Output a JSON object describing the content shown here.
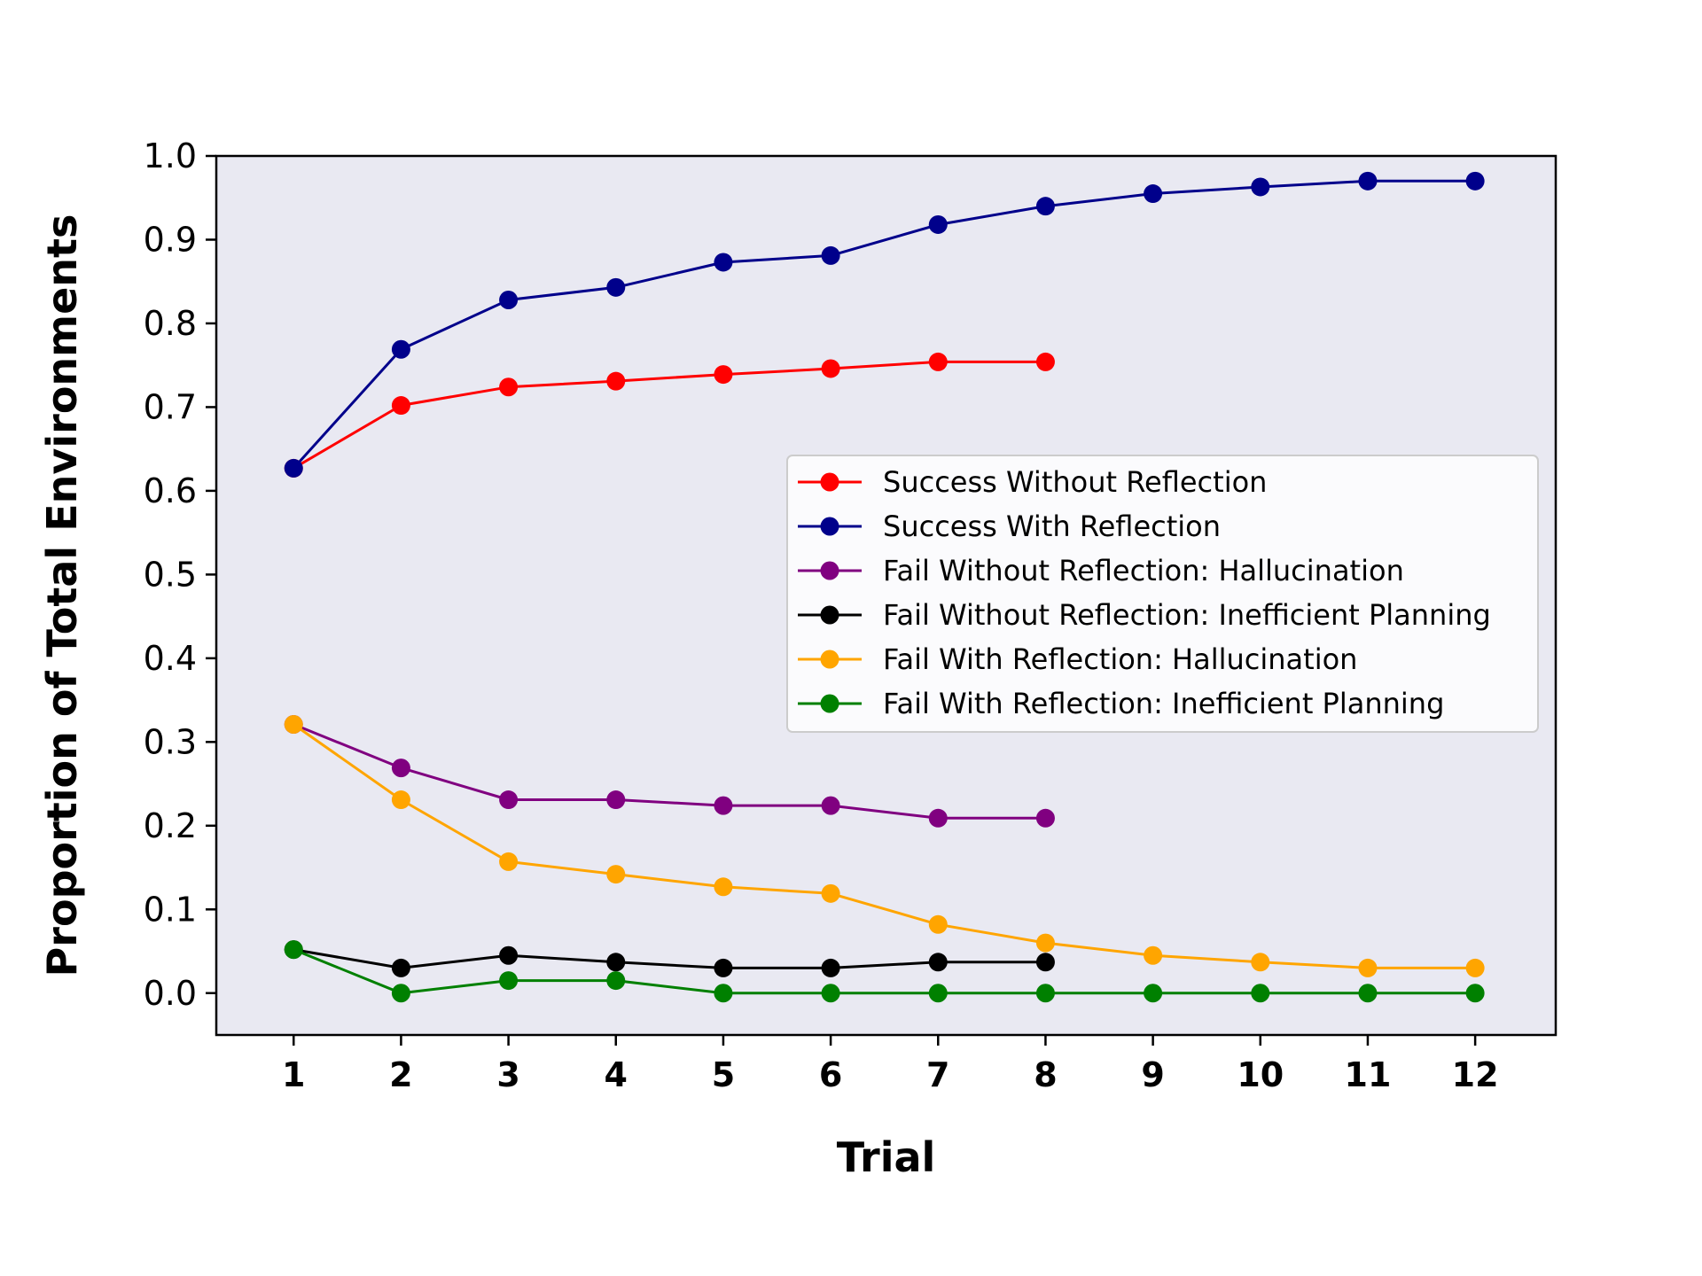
{
  "chart_data": {
    "type": "line",
    "title": "",
    "xlabel": "Trial",
    "ylabel": "Proportion of Total Environments",
    "x_ticks": [
      "1",
      "2",
      "3",
      "4",
      "5",
      "6",
      "7",
      "8",
      "9",
      "10",
      "11",
      "12"
    ],
    "y_ticks": [
      "0.0",
      "0.1",
      "0.2",
      "0.3",
      "0.4",
      "0.5",
      "0.6",
      "0.7",
      "0.8",
      "0.9",
      "1.0"
    ],
    "xlim": [
      0.28,
      12.75
    ],
    "ylim": [
      -0.05,
      1.0
    ],
    "grid": false,
    "legend_position": "center-right",
    "plot_background": "#e9e9f2",
    "series": [
      {
        "name": "Success Without Reflection",
        "color": "#ff0000",
        "x": [
          1,
          2,
          3,
          4,
          5,
          6,
          7,
          8
        ],
        "y": [
          0.627,
          0.702,
          0.724,
          0.731,
          0.739,
          0.746,
          0.754,
          0.754
        ]
      },
      {
        "name": "Success With Reflection",
        "color": "#00008b",
        "x": [
          1,
          2,
          3,
          4,
          5,
          6,
          7,
          8,
          9,
          10,
          11,
          12
        ],
        "y": [
          0.627,
          0.769,
          0.828,
          0.843,
          0.873,
          0.881,
          0.918,
          0.94,
          0.955,
          0.963,
          0.97,
          0.97
        ]
      },
      {
        "name": "Fail Without Reflection: Hallucination",
        "color": "#800080",
        "x": [
          1,
          2,
          3,
          4,
          5,
          6,
          7,
          8
        ],
        "y": [
          0.321,
          0.269,
          0.231,
          0.231,
          0.224,
          0.224,
          0.209,
          0.209
        ]
      },
      {
        "name": "Fail Without Reflection: Inefficient Planning",
        "color": "#000000",
        "x": [
          1,
          2,
          3,
          4,
          5,
          6,
          7,
          8
        ],
        "y": [
          0.052,
          0.03,
          0.045,
          0.037,
          0.03,
          0.03,
          0.037,
          0.037
        ]
      },
      {
        "name": "Fail With Reflection: Hallucination",
        "color": "#ffa500",
        "x": [
          1,
          2,
          3,
          4,
          5,
          6,
          7,
          8,
          9,
          10,
          11,
          12
        ],
        "y": [
          0.321,
          0.231,
          0.157,
          0.142,
          0.127,
          0.119,
          0.082,
          0.06,
          0.045,
          0.037,
          0.03,
          0.03
        ]
      },
      {
        "name": "Fail With Reflection: Inefficient Planning",
        "color": "#008000",
        "x": [
          1,
          2,
          3,
          4,
          5,
          6,
          7,
          8,
          9,
          10,
          11,
          12
        ],
        "y": [
          0.052,
          0.0,
          0.015,
          0.015,
          0.0,
          0.0,
          0.0,
          0.0,
          0.0,
          0.0,
          0.0,
          0.0
        ]
      }
    ]
  }
}
